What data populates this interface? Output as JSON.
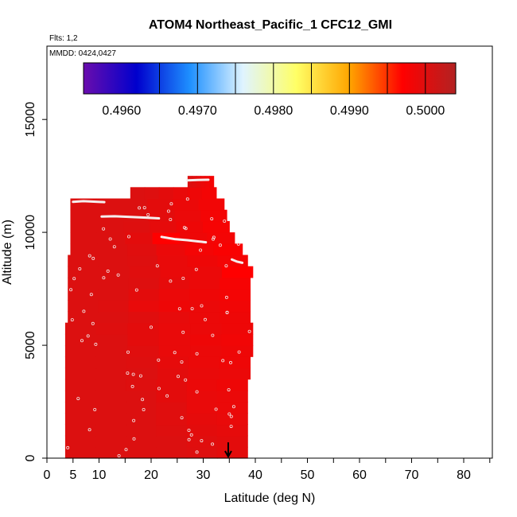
{
  "chart_data": {
    "type": "heatmap",
    "title": "ATOM4 Northeast_Pacific_1 CFC12_GMI",
    "flights_label": "Flts: 1,2",
    "dates_label": "MMDD: 0424,0427",
    "xlabel": "Latitude (deg N)",
    "ylabel": "Altitude (m)",
    "xlim": [
      0,
      85
    ],
    "ylim": [
      0,
      17500
    ],
    "x_ticks": [
      0,
      5,
      10,
      20,
      30,
      40,
      50,
      60,
      70,
      80
    ],
    "y_ticks": [
      0,
      5000,
      10000,
      15000
    ],
    "colorbar": {
      "min": 0.4955,
      "max": 0.5004,
      "tick_values": [
        0.496,
        0.497,
        0.498,
        0.499,
        0.5
      ],
      "tick_labels": [
        "0.4960",
        "0.4970",
        "0.4980",
        "0.4990",
        "0.5000"
      ],
      "stops": [
        "#6a0dad",
        "#0000cd",
        "#1e90ff",
        "#e0f4ff",
        "#ffff66",
        "#ffa500",
        "#ff0000",
        "#b22222"
      ],
      "lines": [
        0.4965,
        0.497,
        0.4975,
        0.498,
        0.4985,
        0.499,
        0.4995,
        0.5
      ]
    },
    "curtain_bands": [
      {
        "alt": [
          0,
          500
        ],
        "lat": [
          3.5,
          38.5
        ],
        "values": [
          0.50002,
          0.50002,
          0.50002,
          0.50002,
          0.5,
          0.49995
        ]
      },
      {
        "alt": [
          500,
          1000
        ],
        "lat": [
          3.5,
          38.5
        ],
        "values": [
          0.50002,
          0.50002,
          0.50002,
          0.50002,
          0.49998,
          0.49995
        ]
      },
      {
        "alt": [
          1000,
          1500
        ],
        "lat": [
          3.5,
          38.5
        ],
        "values": [
          0.50002,
          0.50002,
          0.50002,
          0.5,
          0.49995,
          0.49993
        ]
      },
      {
        "alt": [
          1500,
          2000
        ],
        "lat": [
          3.5,
          38.5
        ],
        "values": [
          0.50002,
          0.50002,
          0.50002,
          0.49998,
          0.49993,
          0.4999
        ]
      },
      {
        "alt": [
          2000,
          2500
        ],
        "lat": [
          3.5,
          38.5
        ],
        "values": [
          0.50002,
          0.50002,
          0.50002,
          0.49998,
          0.4999,
          0.49988
        ]
      },
      {
        "alt": [
          2500,
          3000
        ],
        "lat": [
          3.5,
          38.5
        ],
        "values": [
          0.50002,
          0.50002,
          0.50002,
          0.49995,
          0.4999,
          0.49988
        ]
      },
      {
        "alt": [
          3000,
          3500
        ],
        "lat": [
          3.5,
          38.5
        ],
        "values": [
          0.50002,
          0.50002,
          0.5,
          0.49995,
          0.49988,
          0.49985
        ]
      },
      {
        "alt": [
          3500,
          4000
        ],
        "lat": [
          3.5,
          39.0
        ],
        "values": [
          0.50002,
          0.50002,
          0.50002,
          0.49995,
          0.4999,
          0.49988
        ]
      },
      {
        "alt": [
          4000,
          4500
        ],
        "lat": [
          3.5,
          39.0
        ],
        "values": [
          0.50002,
          0.50002,
          0.5,
          0.49993,
          0.49988,
          0.49985
        ]
      },
      {
        "alt": [
          4500,
          5000
        ],
        "lat": [
          3.5,
          39.5
        ],
        "values": [
          0.50002,
          0.50002,
          0.49998,
          0.4999,
          0.49988,
          0.49985
        ]
      },
      {
        "alt": [
          5000,
          5500
        ],
        "lat": [
          3.5,
          39.5
        ],
        "values": [
          0.50002,
          0.50002,
          0.49995,
          0.4999,
          0.49985,
          0.49983
        ]
      },
      {
        "alt": [
          5500,
          6000
        ],
        "lat": [
          3.5,
          39.5
        ],
        "values": [
          0.50002,
          0.5,
          0.49995,
          0.4999,
          0.49988,
          0.49985
        ]
      },
      {
        "alt": [
          6000,
          6500
        ],
        "lat": [
          4.0,
          39.0
        ],
        "values": [
          0.50002,
          0.50002,
          0.49998,
          0.49992,
          0.49988,
          0.49985
        ]
      },
      {
        "alt": [
          6500,
          7000
        ],
        "lat": [
          4.0,
          39.0
        ],
        "values": [
          0.50002,
          0.5,
          0.4999,
          0.49985,
          0.49988,
          0.49983
        ]
      },
      {
        "alt": [
          7000,
          7500
        ],
        "lat": [
          4.0,
          39.0
        ],
        "values": [
          0.50002,
          0.50002,
          0.49995,
          0.49988,
          0.49985,
          0.4998
        ]
      },
      {
        "alt": [
          7500,
          8000
        ],
        "lat": [
          4.0,
          39.0
        ],
        "values": [
          0.50002,
          0.50002,
          0.5,
          0.49993,
          0.49988,
          0.49978
        ]
      },
      {
        "alt": [
          8000,
          8500
        ],
        "lat": [
          4.0,
          39.5
        ],
        "values": [
          0.50002,
          0.50002,
          0.49998,
          0.4999,
          0.49988,
          0.4997
        ]
      },
      {
        "alt": [
          8500,
          9000
        ],
        "lat": [
          4.0,
          38.5
        ],
        "values": [
          0.50002,
          0.50002,
          0.5,
          0.4999,
          0.49985,
          0.4998
        ]
      },
      {
        "alt": [
          9000,
          9500
        ],
        "lat": [
          4.5,
          37.5
        ],
        "values": [
          0.50002,
          0.50002,
          0.49998,
          0.49988,
          0.4998,
          0.49975
        ]
      },
      {
        "alt": [
          9500,
          10000
        ],
        "lat": [
          4.5,
          36.0
        ],
        "values": [
          0.50002,
          0.50002,
          0.49995,
          0.4997,
          0.49985,
          0.4998
        ]
      },
      {
        "alt": [
          10000,
          10500
        ],
        "lat": [
          4.5,
          35.0
        ],
        "values": [
          0.50002,
          0.50002,
          0.5,
          0.49993,
          0.49985,
          0.49978
        ]
      },
      {
        "alt": [
          10500,
          11000
        ],
        "lat": [
          4.5,
          34.5
        ],
        "values": [
          0.50002,
          0.50002,
          0.50002,
          0.49995,
          0.49988,
          0.4998
        ]
      },
      {
        "alt": [
          11000,
          11500
        ],
        "lat": [
          4.5,
          34.0
        ],
        "values": [
          0.50002,
          0.50002,
          0.50002,
          0.49995,
          0.49988,
          0.49982
        ]
      },
      {
        "alt": [
          11500,
          12000
        ],
        "lat": [
          16.0,
          32.5
        ],
        "values": [
          0.50002,
          0.5,
          0.49995,
          0.4999,
          0.49985,
          0.4998
        ]
      },
      {
        "alt": [
          12000,
          12500
        ],
        "lat": [
          27.0,
          32.0
        ],
        "values": [
          0.50002,
          0.49998,
          0.49993,
          0.49988,
          0.49983,
          0.4998
        ]
      }
    ],
    "flight_tracks": [
      {
        "lat": [
          10.5,
          13.0,
          16.0,
          19.0,
          21.5
        ],
        "alt": [
          10700,
          10710,
          10680,
          10650,
          10620
        ]
      },
      {
        "lat": [
          22.0,
          24.5,
          27.0,
          29.0,
          30.5
        ],
        "alt": [
          9800,
          9700,
          9650,
          9600,
          9560
        ]
      },
      {
        "lat": [
          5.0,
          7.0,
          9.0,
          11.0
        ],
        "alt": [
          11350,
          11380,
          11360,
          11340
        ]
      },
      {
        "lat": [
          35.5,
          36.5,
          37.5
        ],
        "alt": [
          8800,
          8700,
          8650
        ]
      },
      {
        "lat": [
          27.0,
          29.0,
          31.0
        ],
        "alt": [
          12300,
          12320,
          12330
        ]
      }
    ],
    "marker_arrow": {
      "lat": 34.8,
      "alt_from": 700,
      "alt_to": 0
    }
  }
}
